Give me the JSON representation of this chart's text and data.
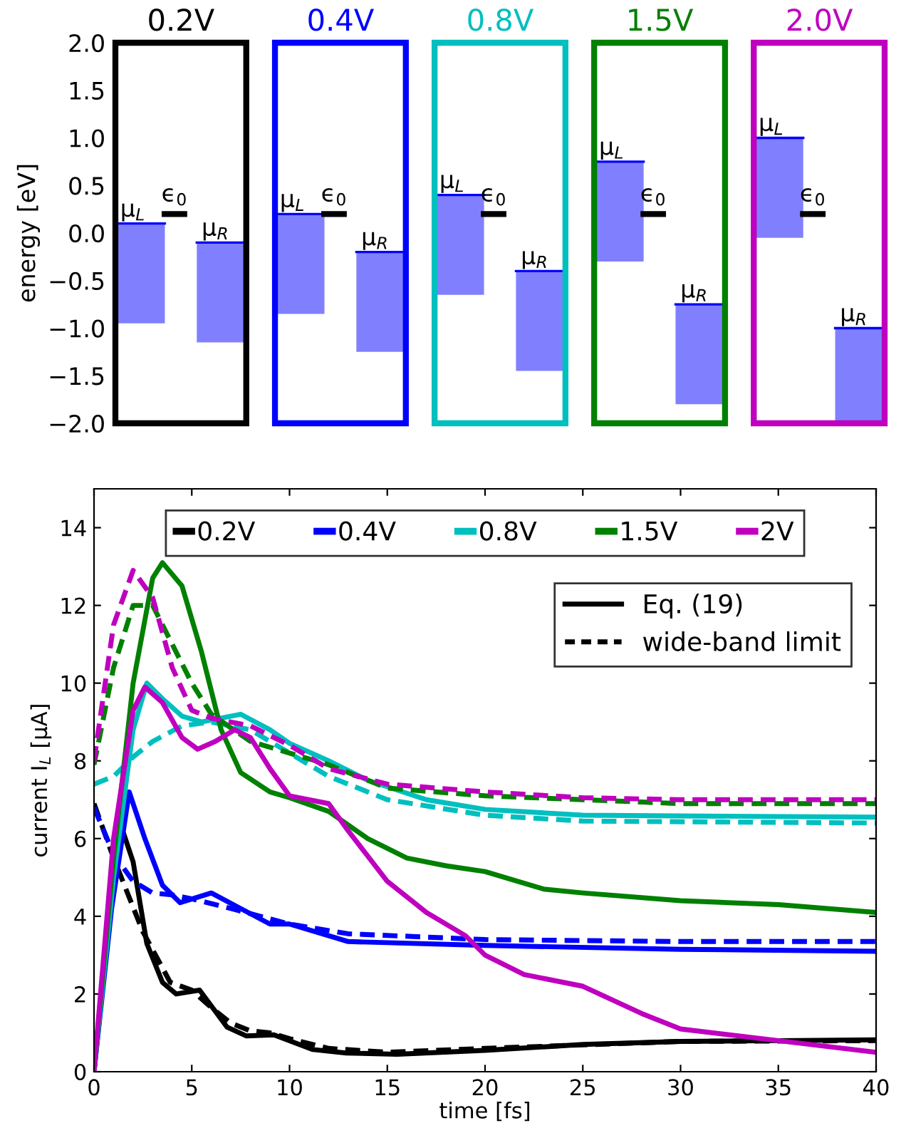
{
  "chart_data": [
    {
      "type": "bar",
      "ylabel": "energy [eV]",
      "categories": [
        "0.2V",
        "0.4V",
        "0.8V",
        "1.5V",
        "2.0V"
      ],
      "ylim": [
        -2.0,
        2.0
      ],
      "yticks": [
        {
          "value": -2.0,
          "label": "−2.0"
        },
        {
          "value": -1.5,
          "label": "−1.5"
        },
        {
          "value": -1.0,
          "label": "−1.0"
        },
        {
          "value": -0.5,
          "label": "−0.5"
        },
        {
          "value": 0.0,
          "label": "0.0"
        },
        {
          "value": 0.5,
          "label": "0.5"
        },
        {
          "value": 1.0,
          "label": "1.0"
        },
        {
          "value": 1.5,
          "label": "1.5"
        },
        {
          "value": 2.0,
          "label": "2.0"
        }
      ],
      "series": [
        {
          "name": "μ$_{L}$",
          "color": "#8080ff",
          "base": [
            -0.95,
            -0.85,
            -0.65,
            -0.3,
            -0.05
          ],
          "values": [
            1.05,
            1.05,
            1.05,
            1.05,
            1.05
          ]
        },
        {
          "name": "μ$_{R}$",
          "color": "#8080ff",
          "base": [
            -1.15,
            -1.25,
            -1.45,
            -1.8,
            -2.0
          ],
          "values": [
            1.05,
            1.05,
            1.05,
            1.05,
            1.0
          ]
        }
      ],
      "ref_lines": [
        {
          "axis": "y",
          "value": 0.2,
          "label": "ϵ$_{0}$",
          "color": "#000000"
        }
      ]
    },
    {
      "type": "line",
      "xlabel": "time [fs]",
      "ylabel": "current I$_{L}$ [μA]",
      "xlim": [
        0,
        40
      ],
      "ylim": [
        0,
        15
      ],
      "xticks": [
        0,
        5,
        10,
        15,
        20,
        25,
        30,
        35,
        40
      ],
      "yticks": [
        0,
        2,
        4,
        6,
        8,
        10,
        12,
        14
      ],
      "legend": "top",
      "annotations": [
        "Eq. (19)",
        "wide-band limit"
      ],
      "series": [
        {
          "name": "0.2V",
          "color": "#000000",
          "line_style": "solid",
          "x": [
            0,
            0.7,
            1.4,
            2.0,
            2.7,
            3.5,
            4.2,
            5.4,
            6.8,
            7.8,
            9.2,
            11.2,
            12.9,
            15.5,
            20,
            25,
            30,
            35,
            40
          ],
          "values": [
            0,
            3.8,
            6.3,
            5.4,
            3.3,
            2.3,
            2.0,
            2.1,
            1.15,
            0.92,
            0.95,
            0.57,
            0.48,
            0.45,
            0.55,
            0.7,
            0.78,
            0.8,
            0.82
          ]
        },
        {
          "color": "#000000",
          "line_style": "dashed",
          "x": [
            0,
            1,
            2.5,
            3.9,
            5,
            6,
            7,
            8,
            9,
            10,
            12,
            15,
            20,
            30,
            40
          ],
          "values": [
            6.9,
            5.5,
            3.6,
            2.3,
            2.1,
            1.65,
            1.25,
            1.05,
            1.0,
            0.85,
            0.6,
            0.5,
            0.6,
            0.78,
            0.8
          ]
        },
        {
          "name": "0.4V",
          "color": "#0000ff",
          "line_style": "solid",
          "x": [
            0,
            0.9,
            1.8,
            2.6,
            3.5,
            4.4,
            6,
            7.5,
            9,
            10,
            12,
            13,
            20,
            30,
            40
          ],
          "values": [
            0,
            4.2,
            7.2,
            6.0,
            4.8,
            4.35,
            4.6,
            4.2,
            3.8,
            3.8,
            3.5,
            3.35,
            3.25,
            3.15,
            3.1
          ]
        },
        {
          "color": "#0000ff",
          "line_style": "dashed",
          "x": [
            0,
            1,
            2,
            3,
            4,
            5,
            7,
            10,
            13,
            20,
            30,
            40
          ],
          "values": [
            6.8,
            5.6,
            4.9,
            4.6,
            4.55,
            4.45,
            4.2,
            3.8,
            3.55,
            3.4,
            3.35,
            3.35
          ]
        },
        {
          "name": "0.8V",
          "color": "#00bfbf",
          "line_style": "solid",
          "x": [
            0,
            1,
            2,
            2.7,
            3.5,
            4.5,
            5.5,
            7.5,
            9,
            10,
            12,
            14,
            17,
            20,
            25,
            40
          ],
          "values": [
            0,
            5.0,
            8.8,
            10.0,
            9.6,
            9.15,
            9.0,
            9.2,
            8.8,
            8.45,
            8.0,
            7.5,
            7.0,
            6.75,
            6.6,
            6.55
          ]
        },
        {
          "color": "#00bfbf",
          "line_style": "dashed",
          "x": [
            0,
            1,
            2,
            3,
            4.5,
            6,
            8,
            10,
            12,
            15,
            20,
            25,
            40
          ],
          "values": [
            7.4,
            7.6,
            8.1,
            8.5,
            8.9,
            9.0,
            8.8,
            8.2,
            7.6,
            7.0,
            6.6,
            6.45,
            6.4
          ]
        },
        {
          "name": "1.5V",
          "color": "#008000",
          "line_style": "solid",
          "x": [
            0,
            1,
            2,
            3,
            3.5,
            4.5,
            5.5,
            6.5,
            7.5,
            9,
            10,
            12,
            14,
            16,
            18,
            20,
            23,
            25,
            30,
            35,
            40
          ],
          "values": [
            0,
            5.5,
            10.0,
            12.7,
            13.1,
            12.5,
            10.8,
            8.8,
            7.7,
            7.2,
            7.05,
            6.7,
            6.0,
            5.5,
            5.3,
            5.15,
            4.7,
            4.6,
            4.4,
            4.3,
            4.1
          ]
        },
        {
          "color": "#008000",
          "line_style": "dashed",
          "x": [
            0,
            1,
            2,
            3,
            4,
            5,
            6,
            8,
            10,
            12,
            15,
            20,
            25,
            30,
            40
          ],
          "values": [
            7.9,
            10.4,
            12.0,
            12.0,
            11.0,
            10.0,
            9.2,
            8.5,
            8.2,
            7.9,
            7.3,
            7.1,
            7.0,
            6.9,
            6.9
          ]
        },
        {
          "name": "2V",
          "color": "#bf00bf",
          "line_style": "solid",
          "x": [
            0,
            1,
            2,
            2.6,
            3.5,
            4.5,
            5.3,
            6.2,
            7.2,
            8,
            9,
            10,
            12,
            13,
            15,
            17,
            19,
            20,
            22,
            25,
            28,
            30,
            35,
            40
          ],
          "values": [
            0,
            6.0,
            9.3,
            9.9,
            9.5,
            8.6,
            8.3,
            8.5,
            8.8,
            8.6,
            7.8,
            7.1,
            6.9,
            6.2,
            4.9,
            4.1,
            3.5,
            3.0,
            2.5,
            2.2,
            1.5,
            1.1,
            0.8,
            0.5
          ]
        },
        {
          "color": "#bf00bf",
          "line_style": "dashed",
          "x": [
            0,
            1,
            2,
            3,
            4,
            5,
            6,
            8,
            10,
            12,
            15,
            20,
            25,
            30,
            40
          ],
          "values": [
            8.0,
            11.5,
            12.9,
            12.2,
            10.4,
            9.3,
            9.1,
            8.9,
            8.4,
            7.8,
            7.4,
            7.2,
            7.05,
            7.0,
            7.0
          ]
        }
      ]
    }
  ]
}
